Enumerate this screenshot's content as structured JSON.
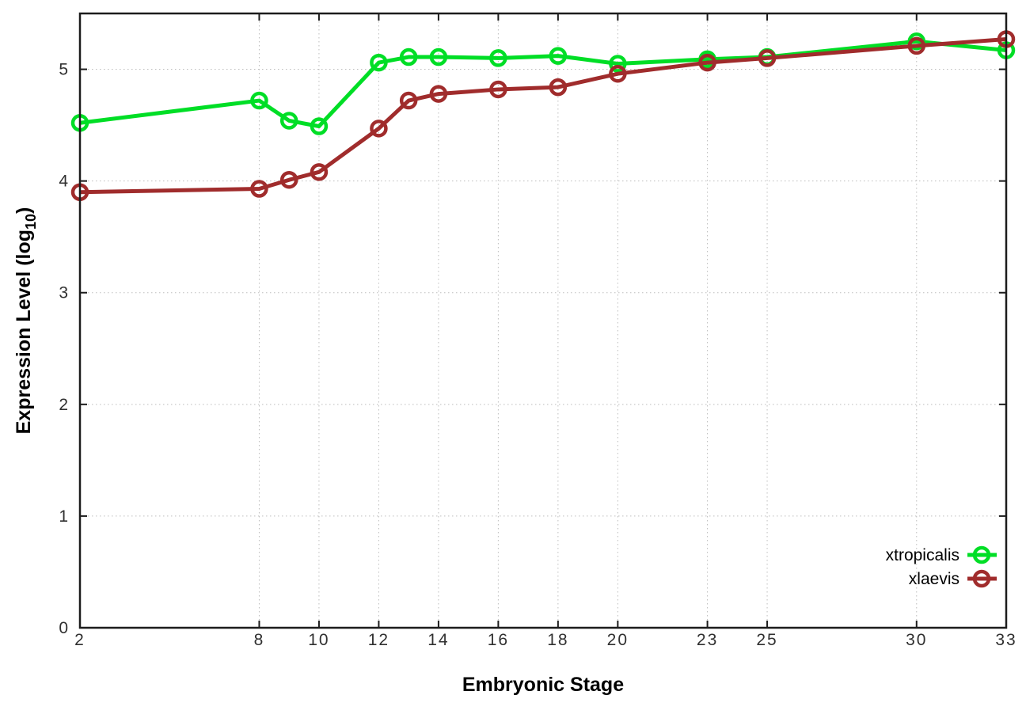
{
  "chart_data": {
    "type": "line",
    "title": "",
    "xlabel": "Embryonic Stage",
    "ylabel": "Expression Level (log10)",
    "ylabel_parts": {
      "pre": "Expression Level (log",
      "sub": "10",
      "post": ")"
    },
    "xlim": [
      2,
      33
    ],
    "ylim": [
      0,
      5.5
    ],
    "xticks": [
      2,
      8,
      10,
      12,
      14,
      16,
      18,
      20,
      23,
      25,
      30,
      33
    ],
    "yticks": [
      0,
      1,
      2,
      3,
      4,
      5
    ],
    "grid": true,
    "legend": {
      "position": "inside-bottom-right",
      "entries": [
        "xtropicalis",
        "xlaevis"
      ]
    },
    "x": [
      2,
      8,
      9,
      10,
      12,
      13,
      14,
      16,
      18,
      20,
      23,
      25,
      30,
      33
    ],
    "series": [
      {
        "name": "xtropicalis",
        "color": "#00DE26",
        "marker": "open-circle",
        "values": [
          4.52,
          4.72,
          4.54,
          4.49,
          5.06,
          5.11,
          5.11,
          5.1,
          5.12,
          5.05,
          5.09,
          5.11,
          5.25,
          5.17
        ]
      },
      {
        "name": "xlaevis",
        "color": "#A02C2C",
        "marker": "open-circle",
        "values": [
          3.9,
          3.93,
          4.01,
          4.08,
          4.47,
          4.72,
          4.78,
          4.82,
          4.84,
          4.96,
          5.06,
          5.1,
          5.21,
          5.27
        ]
      }
    ],
    "colors": {
      "grid": "#bdbdbd",
      "axis": "#1c1c1c",
      "tick_label": "#303030",
      "text": "#000000",
      "background": "#ffffff"
    }
  }
}
